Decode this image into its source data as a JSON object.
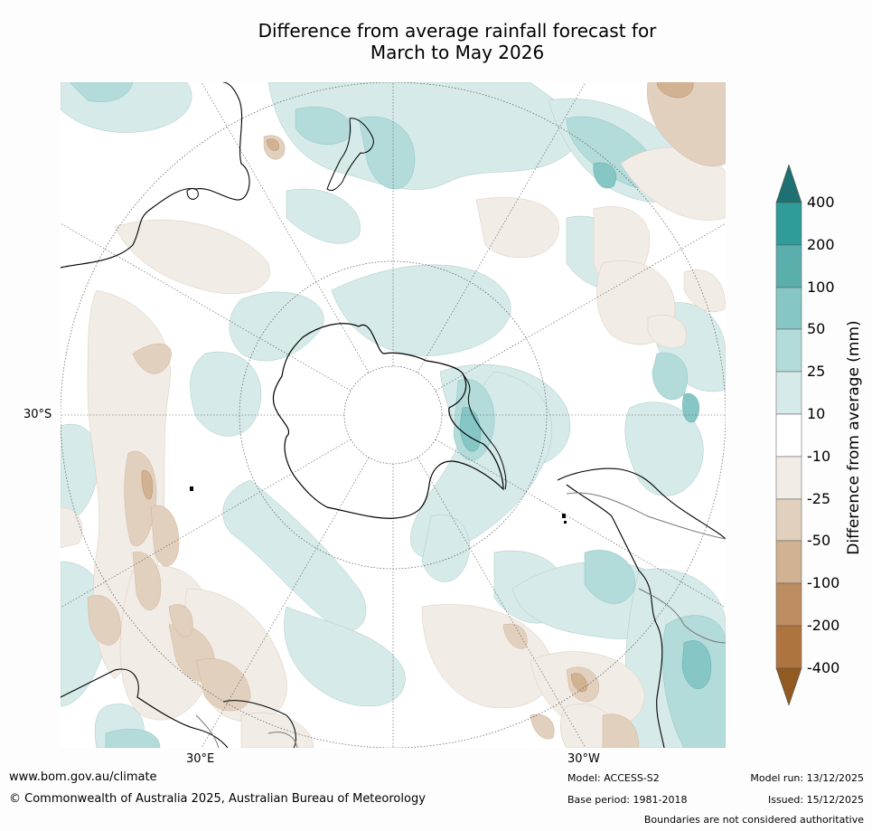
{
  "title": {
    "line1": "Difference from average rainfall forecast for",
    "line2": "March to May 2026"
  },
  "map": {
    "lat_label": "30°S",
    "lon_labels": {
      "east": "30°E",
      "west": "30°W"
    }
  },
  "legend": {
    "title": "Difference from average (mm)",
    "ticks": [
      "400",
      "200",
      "100",
      "50",
      "25",
      "10",
      "-10",
      "-25",
      "-50",
      "-100",
      "-200",
      "-400"
    ],
    "colors": {
      "above_400": "#1f7070",
      "200_400": "#2f9c9a",
      "100_200": "#5aaeab",
      "50_100": "#86c6c4",
      "25_50": "#b3dbda",
      "10_25": "#d6eae9",
      "neutral": "#ffffff",
      "m10_m25": "#f1ece6",
      "m25_m50": "#e2d0bf",
      "m50_m100": "#d1b292",
      "m100_m200": "#bd8d62",
      "m200_m400": "#ad743f",
      "below_m400": "#915a21"
    }
  },
  "footer": {
    "website": "www.bom.gov.au/climate",
    "copyright": "© Commonwealth of Australia 2025, Australian Bureau of Meteorology",
    "model": "Model: ACCESS-S2",
    "base_period": "Base period: 1981-2018",
    "model_run": "Model run: 13/12/2025",
    "issued": "Issued: 15/12/2025",
    "disclaimer": "Boundaries are not considered authoritative"
  }
}
